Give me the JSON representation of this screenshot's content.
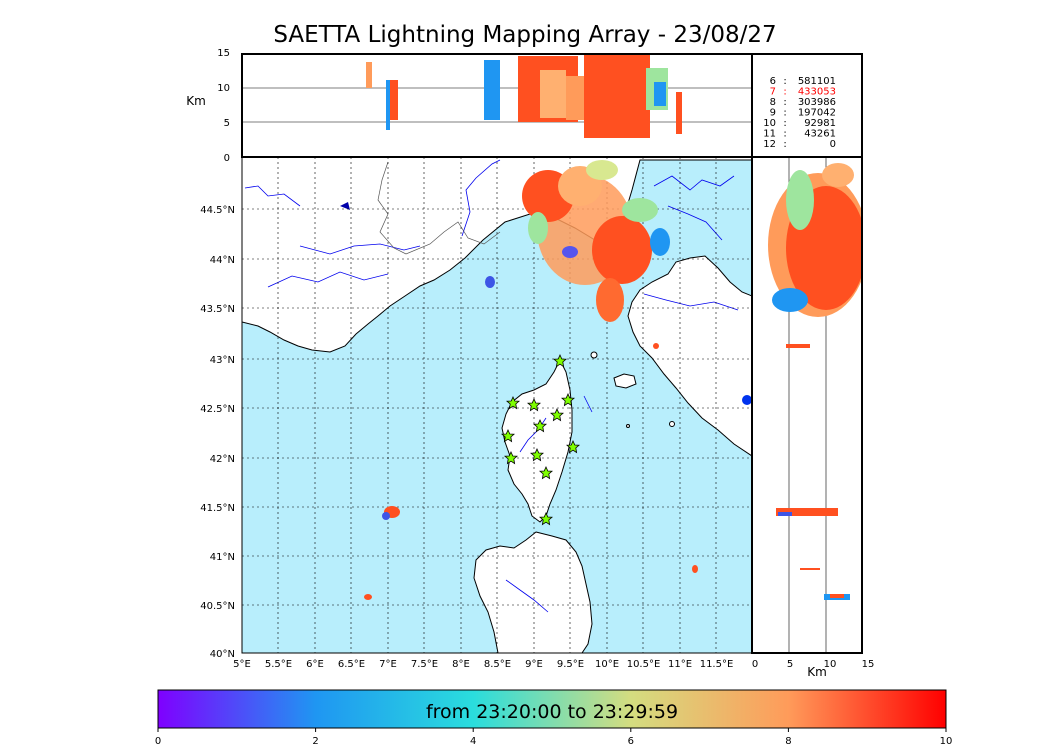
{
  "title": "SAETTA Lightning Mapping Array - 23/08/27",
  "alt_axis": {
    "label": "Km",
    "ticks": [
      "15",
      "10",
      "5",
      "0"
    ]
  },
  "side_axis": {
    "label": "Km",
    "ticks": [
      "0",
      "5",
      "10",
      "15"
    ]
  },
  "lat_ticks": [
    "44.5°N",
    "44°N",
    "43.5°N",
    "43°N",
    "42.5°N",
    "42°N",
    "41.5°N",
    "41°N",
    "40.5°N",
    "40°N"
  ],
  "lon_ticks": [
    "5°E",
    "5.5°E",
    "6°E",
    "6.5°E",
    "7°E",
    "7.5°E",
    "8°E",
    "8.5°E",
    "9°E",
    "9.5°E",
    "10°E",
    "10.5°E",
    "11°E",
    "11.5°E"
  ],
  "station_counts": [
    {
      "id": "6",
      "value": "581101",
      "color": "#000000"
    },
    {
      "id": "7",
      "value": "433053",
      "color": "#ff0000"
    },
    {
      "id": "8",
      "value": "303986",
      "color": "#000000"
    },
    {
      "id": "9",
      "value": "197042",
      "color": "#000000"
    },
    {
      "id": "10",
      "value": "92981",
      "color": "#000000"
    },
    {
      "id": "11",
      "value": "43261",
      "color": "#000000"
    },
    {
      "id": "12",
      "value": "0",
      "color": "#000000"
    }
  ],
  "colorbar": {
    "label": "from 23:20:00 to 23:29:59",
    "ticks": [
      "0",
      "2",
      "4",
      "6",
      "8",
      "10"
    ],
    "colors": [
      "#7f00ff",
      "#1f96f2",
      "#2adddd",
      "#d4dd80",
      "#ff5f30",
      "#ff0000"
    ]
  },
  "colors": {
    "sea": "#b8eefc",
    "land": "#ffffff",
    "rivers": "#0000ee",
    "stations": "#7fff00"
  }
}
